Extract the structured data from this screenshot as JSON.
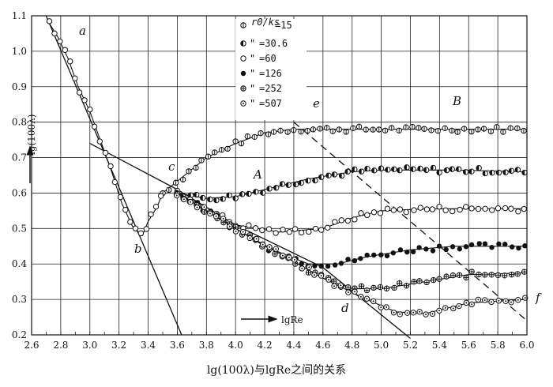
{
  "chart_data": {
    "type": "scatter",
    "title": "lg(100λ)与lgRe之间的关系",
    "xlabel": "lgRe",
    "ylabel": "lg(100λ)",
    "xlim": [
      2.6,
      6.0
    ],
    "ylim": [
      0.2,
      1.1
    ],
    "xticks": [
      "2.6",
      "2.8",
      "3.0",
      "3.2",
      "3.4",
      "3.6",
      "3.8",
      "4.0",
      "4.2",
      "4.4",
      "4.6",
      "4.8",
      "5.0",
      "5.2",
      "5.4",
      "5.6",
      "5.8",
      "6.0"
    ],
    "yticks": [
      "0.2",
      "0.3",
      "0.4",
      "0.5",
      "0.6",
      "0.7",
      "0.8",
      "0.9",
      "1.0",
      "1.1"
    ],
    "legend_header": "r0/ks",
    "legend": [
      {
        "label": "=15",
        "marker": "half-vertical"
      },
      {
        "label": "=30.6",
        "marker": "half-left-filled"
      },
      {
        "label": "=60",
        "marker": "open"
      },
      {
        "label": "=126",
        "marker": "filled"
      },
      {
        "label": "=252",
        "marker": "crossed"
      },
      {
        "label": "=507",
        "marker": "dotted"
      }
    ],
    "ditto": "\"",
    "annotations": [
      "a",
      "b",
      "c",
      "d",
      "e",
      "f",
      "A",
      "B"
    ],
    "reference_lines": [
      {
        "name": "laminar-ab",
        "points": [
          [
            2.7,
            1.1
          ],
          [
            3.63,
            0.2
          ]
        ],
        "style": "solid"
      },
      {
        "name": "smooth-cd",
        "points": [
          [
            3.0,
            0.74
          ],
          [
            3.6,
            0.61
          ],
          [
            4.0,
            0.51
          ],
          [
            4.6,
            0.39
          ],
          [
            5.2,
            0.19
          ]
        ],
        "style": "solid"
      },
      {
        "name": "ef",
        "points": [
          [
            4.4,
            0.8
          ],
          [
            6.0,
            0.24
          ]
        ],
        "style": "dashed"
      }
    ],
    "series": [
      {
        "name": "r0/ks=15",
        "x": [
          3.5,
          3.8,
          4.0,
          4.2,
          4.4,
          4.6,
          5.0,
          5.5,
          6.0
        ],
        "y": [
          0.6,
          0.7,
          0.74,
          0.77,
          0.78,
          0.78,
          0.78,
          0.78,
          0.78
        ]
      },
      {
        "name": "r0/ks=30.6",
        "x": [
          3.6,
          3.8,
          4.0,
          4.2,
          4.5,
          4.8,
          5.0,
          5.5,
          6.0
        ],
        "y": [
          0.6,
          0.585,
          0.59,
          0.61,
          0.64,
          0.66,
          0.665,
          0.665,
          0.66
        ]
      },
      {
        "name": "r0/ks=60",
        "x": [
          3.6,
          3.8,
          4.0,
          4.3,
          4.6,
          4.8,
          5.0,
          5.3,
          5.6,
          6.0
        ],
        "y": [
          0.6,
          0.56,
          0.51,
          0.49,
          0.5,
          0.53,
          0.55,
          0.555,
          0.556,
          0.556
        ]
      },
      {
        "name": "r0/ks=126",
        "x": [
          3.6,
          3.8,
          4.0,
          4.2,
          4.5,
          4.7,
          4.9,
          5.2,
          5.5,
          6.0
        ],
        "y": [
          0.6,
          0.55,
          0.5,
          0.45,
          0.4,
          0.4,
          0.42,
          0.44,
          0.45,
          0.45
        ]
      },
      {
        "name": "r0/ks=252",
        "x": [
          3.6,
          3.8,
          4.0,
          4.3,
          4.6,
          4.8,
          5.0,
          5.3,
          5.6,
          6.0
        ],
        "y": [
          0.6,
          0.55,
          0.5,
          0.43,
          0.36,
          0.33,
          0.33,
          0.35,
          0.37,
          0.375
        ]
      },
      {
        "name": "r0/ks=507",
        "x": [
          3.6,
          3.8,
          4.0,
          4.3,
          4.6,
          4.9,
          5.1,
          5.3,
          5.6,
          6.0
        ],
        "y": [
          0.6,
          0.55,
          0.5,
          0.43,
          0.36,
          0.3,
          0.265,
          0.26,
          0.29,
          0.3
        ]
      },
      {
        "name": "laminar",
        "x": [
          2.72,
          2.78,
          2.85,
          2.92,
          3.0,
          3.08,
          3.15,
          3.22,
          3.3,
          3.36,
          3.4,
          3.46,
          3.5
        ],
        "y": [
          1.08,
          1.04,
          0.98,
          0.9,
          0.83,
          0.74,
          0.66,
          0.57,
          0.5,
          0.48,
          0.52,
          0.56,
          0.6
        ]
      }
    ]
  },
  "caption": {
    "left": "lg(100",
    "lambda": "λ",
    "middle": ")与lg",
    "re": "Re",
    "right": "之间的关系"
  }
}
